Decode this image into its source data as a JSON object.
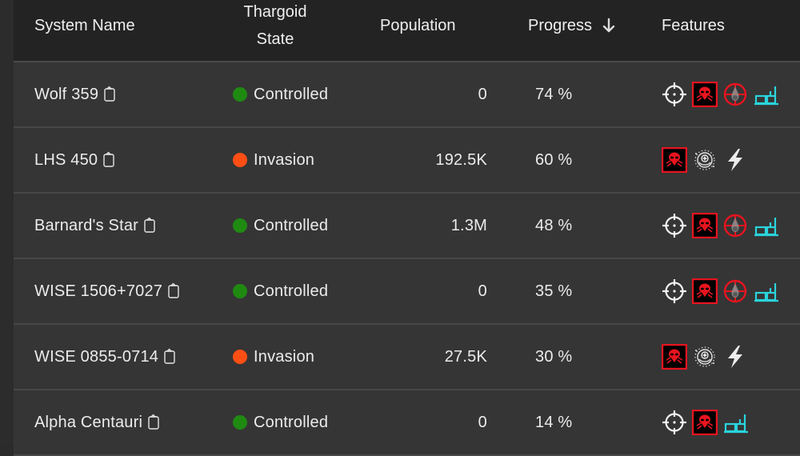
{
  "table": {
    "headers": {
      "system_name": "System Name",
      "thargoid_state_line1": "Thargoid",
      "thargoid_state_line2": "State",
      "population": "Population",
      "progress": "Progress",
      "progress_sort": "sort-descending-arrow-icon",
      "features": "Features"
    },
    "colors": {
      "controlled": "#1f8a12",
      "invasion": "#ff4e14",
      "thargoid_red": "#e8141f",
      "settlement_cyan": "#2ad4dc"
    },
    "rows": [
      {
        "name": "Wolf 359",
        "state": "Controlled",
        "population": "0",
        "progress": "74 %",
        "features": [
          "crosshair-icon",
          "thargoid-skull-icon",
          "barnacle-red-icon",
          "settlement-cyan-icon"
        ]
      },
      {
        "name": "LHS 450",
        "state": "Invasion",
        "population": "192.5K",
        "progress": "60 %",
        "features": [
          "thargoid-skull-icon",
          "starport-icon",
          "lightning-icon"
        ]
      },
      {
        "name": "Barnard's Star",
        "state": "Controlled",
        "population": "1.3M",
        "progress": "48 %",
        "features": [
          "crosshair-icon",
          "thargoid-skull-icon",
          "barnacle-red-icon",
          "settlement-cyan-icon"
        ]
      },
      {
        "name": "WISE 1506+7027",
        "state": "Controlled",
        "population": "0",
        "progress": "35 %",
        "features": [
          "crosshair-icon",
          "thargoid-skull-icon",
          "barnacle-red-icon",
          "settlement-cyan-icon"
        ]
      },
      {
        "name": "WISE 0855-0714",
        "state": "Invasion",
        "population": "27.5K",
        "progress": "30 %",
        "features": [
          "thargoid-skull-icon",
          "starport-icon",
          "lightning-icon"
        ]
      },
      {
        "name": "Alpha Centauri",
        "state": "Controlled",
        "population": "0",
        "progress": "14 %",
        "features": [
          "crosshair-icon",
          "thargoid-skull-icon",
          "settlement-cyan-icon"
        ]
      }
    ]
  }
}
